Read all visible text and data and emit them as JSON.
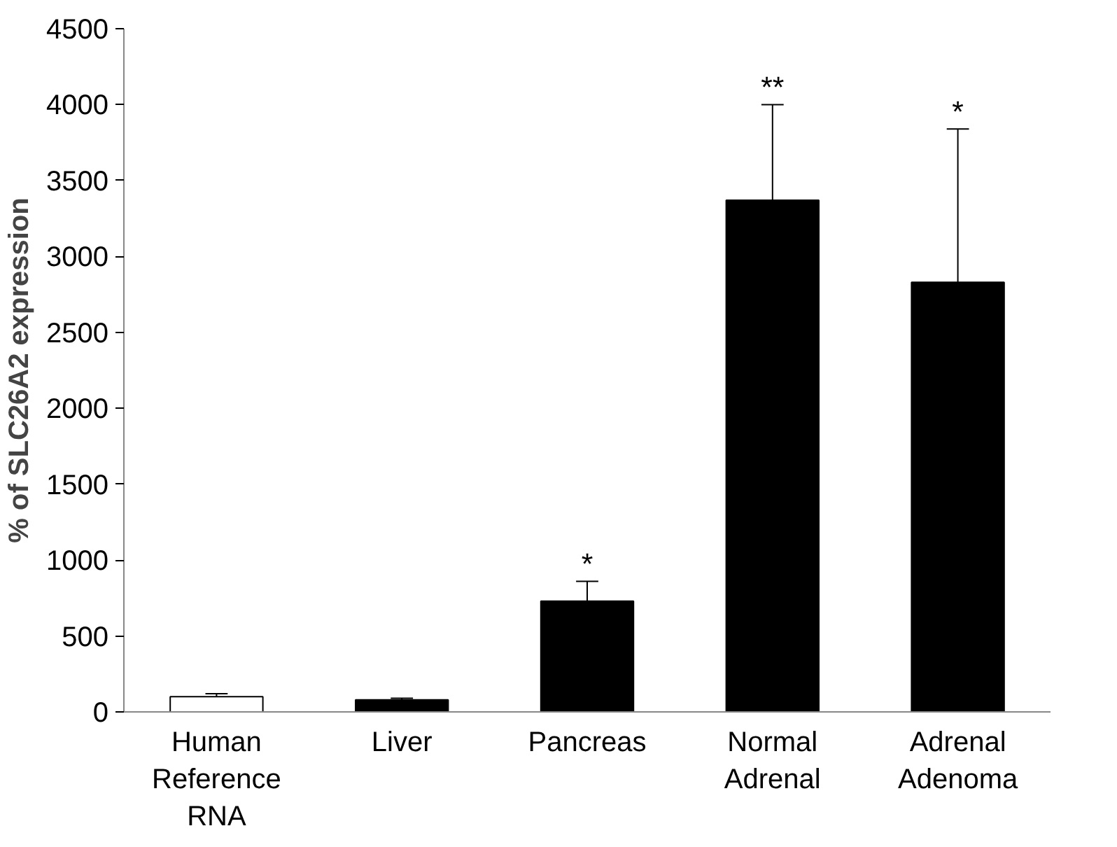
{
  "chart_data": {
    "type": "bar",
    "ylabel": "% of SLC26A2 expression",
    "categories": [
      "Human Reference RNA",
      "Liver",
      "Pancreas",
      "Normal Adrenal",
      "Adrenal Adenoma"
    ],
    "values": [
      100,
      80,
      730,
      3370,
      2830
    ],
    "colors": [
      "#ffffff",
      "#000000",
      "#000000",
      "#000000",
      "#000000"
    ],
    "errors": [
      [
        100,
        120
      ],
      [
        80,
        90
      ],
      [
        730,
        860
      ],
      [
        3370,
        4000
      ],
      [
        2830,
        3840
      ]
    ],
    "ylim": [
      0,
      4500
    ],
    "yticks": [
      0,
      500,
      1000,
      1500,
      2000,
      2500,
      3000,
      3500,
      4000,
      4500
    ],
    "annotations": [
      {
        "text": "*",
        "x": "Pancreas",
        "y": 860
      },
      {
        "text": "**",
        "x": "Normal Adrenal",
        "y": 4000
      },
      {
        "text": "*",
        "x": "Adrenal Adenoma",
        "y": 3840
      }
    ],
    "grid": false
  }
}
